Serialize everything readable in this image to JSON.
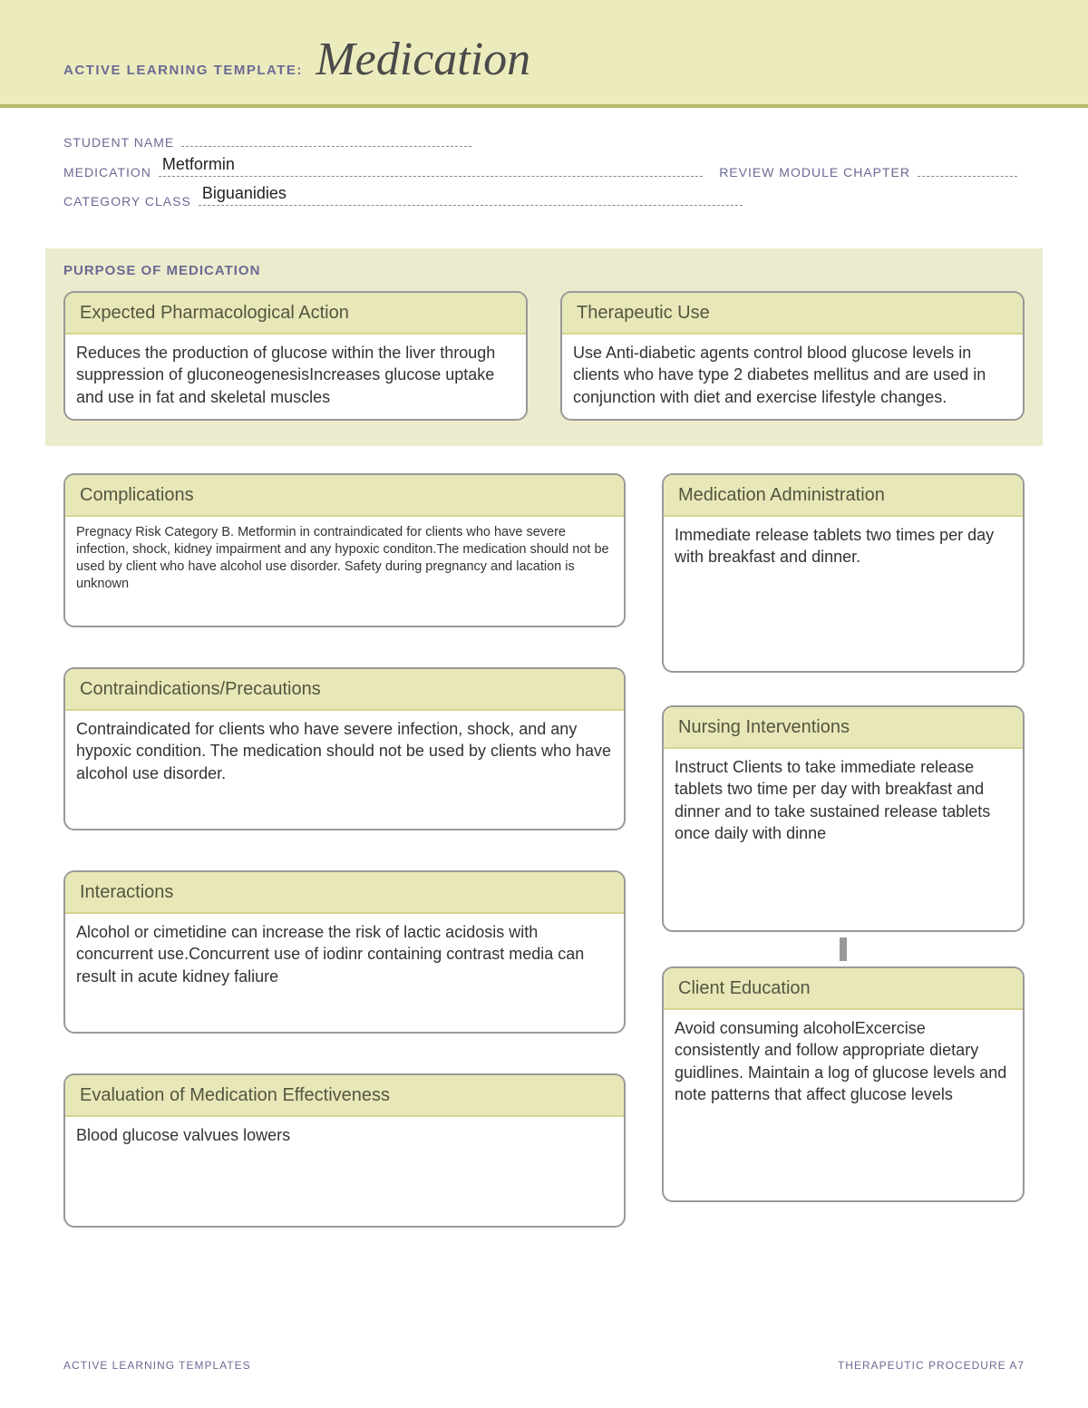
{
  "header": {
    "label": "ACTIVE LEARNING TEMPLATE:",
    "title": "Medication"
  },
  "form": {
    "studentName": {
      "label": "STUDENT NAME",
      "value": ""
    },
    "medication": {
      "label": "MEDICATION",
      "value": "Metformin"
    },
    "reviewModule": {
      "label": "REVIEW MODULE CHAPTER",
      "value": ""
    },
    "categoryClass": {
      "label": "CATEGORY CLASS",
      "value": "Biguanidies"
    }
  },
  "purpose": {
    "sectionTitle": "PURPOSE OF MEDICATION",
    "expected": {
      "title": "Expected Pharmacological Action",
      "body": "Reduces the production of glucose within the liver through suppression of gluconeogenesisIncreases glucose uptake and use in fat and skeletal muscles"
    },
    "therapeutic": {
      "title": "Therapeutic Use",
      "body": "Use Anti-diabetic agents control blood glucose levels in clients who have type 2 diabetes mellitus and are used in conjunction with diet and exercise lifestyle changes."
    }
  },
  "complications": {
    "title": "Complications",
    "body": "Pregnacy Risk Category B. Metformin in contraindicated for clients who have severe infection, shock, kidney impairment and any hypoxic conditon.The medication should not be used by client who have alcohol use disorder. Safety during pregnancy and lacation is unknown"
  },
  "contraindications": {
    "title": "Contraindications/Precautions",
    "body": "Contraindicated for clients who have severe infection, shock, and any hypoxic condition. The medication should not be used by clients who have alcohol use disorder."
  },
  "interactions": {
    "title": "Interactions",
    "body": "Alcohol or cimetidine can increase the risk of lactic acidosis with concurrent use.Concurrent use of iodinr containing contrast media can result in acute kidney faliure"
  },
  "evaluation": {
    "title": "Evaluation of Medication Effectiveness",
    "body": "Blood glucose valvues lowers"
  },
  "administration": {
    "title": "Medication Administration",
    "body": "Immediate release tablets two times per day with breakfast and dinner."
  },
  "nursing": {
    "title": "Nursing Interventions",
    "body": "Instruct Clients to take immediate release tablets two time per day with breakfast and dinner and to take sustained release tablets once daily with dinne"
  },
  "clientEducation": {
    "title": "Client Education",
    "body": "Avoid consuming alcoholExcercise consistently and follow appropriate dietary guidlines. Maintain a log of glucose levels and note patterns that affect glucose levels"
  },
  "footer": {
    "left": "ACTIVE LEARNING TEMPLATES",
    "right": "THERAPEUTIC PROCEDURE   A7"
  },
  "colors": {
    "bannerBg": "#ecebbd",
    "bannerRule": "#b8b96c",
    "labelPurple": "#6b6a94",
    "cardHeadBg": "#e8e7b8",
    "cardBorder": "#999999"
  }
}
